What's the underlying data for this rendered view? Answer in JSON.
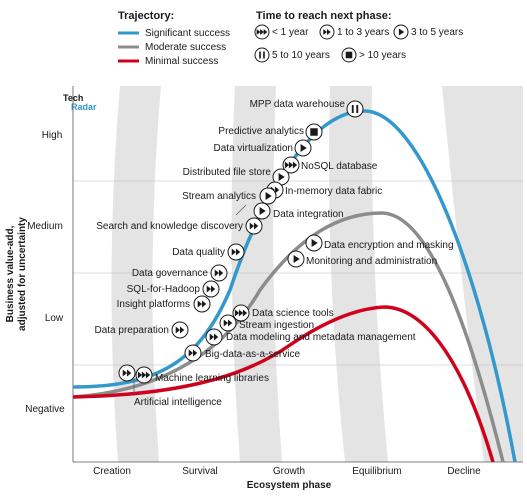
{
  "legend": {
    "trajectory_title": "Trajectory:",
    "trajectory": [
      {
        "label": "Significant success",
        "color": "#3399cc"
      },
      {
        "label": "Moderate success",
        "color": "#8c8c8c"
      },
      {
        "label": "Minimal success",
        "color": "#d0021b"
      }
    ],
    "time_title": "Time to reach next phase:",
    "time": [
      {
        "icon": "triple-arrow-icon",
        "label": "< 1 year"
      },
      {
        "icon": "double-arrow-icon",
        "label": "1 to 3 years"
      },
      {
        "icon": "play-icon",
        "label": "3 to 5 years"
      },
      {
        "icon": "pause-icon",
        "label": "5 to 10 years"
      },
      {
        "icon": "square-icon",
        "label": "> 10 years"
      }
    ]
  },
  "logo": {
    "line1": "Tech",
    "line2": "Radar"
  },
  "chart_data": {
    "type": "line",
    "xlabel": "Ecosystem phase",
    "ylabel_line1": "Business value-add,",
    "ylabel_line2": "adjusted for uncertainty",
    "x_categories": [
      "Creation",
      "Survival",
      "Growth",
      "Equilibrium",
      "Decline"
    ],
    "y_categories": [
      "Negative",
      "Low",
      "Medium",
      "High"
    ],
    "series": [
      {
        "name": "Significant success",
        "color": "#3399cc"
      },
      {
        "name": "Moderate success",
        "color": "#8c8c8c"
      },
      {
        "name": "Minimal success",
        "color": "#d0021b"
      }
    ],
    "technologies": [
      {
        "label": "MPP data warehouse",
        "phase": "Equilibrium",
        "trajectory": "Significant success",
        "time": "5 to 10 years"
      },
      {
        "label": "Predictive analytics",
        "phase": "Growth",
        "trajectory": "Significant success",
        "time": "> 10 years"
      },
      {
        "label": "Data virtualization",
        "phase": "Growth",
        "trajectory": "Significant success",
        "time": "3 to 5 years"
      },
      {
        "label": "NoSQL database",
        "phase": "Growth",
        "trajectory": "Significant success",
        "time": "< 1 year"
      },
      {
        "label": "Distributed file store",
        "phase": "Growth",
        "trajectory": "Significant success",
        "time": "3 to 5 years"
      },
      {
        "label": "In-memory data fabric",
        "phase": "Growth",
        "trajectory": "Significant success",
        "time": "1 to 3 years"
      },
      {
        "label": "Stream analytics",
        "phase": "Growth",
        "trajectory": "Significant success",
        "time": "3 to 5 years"
      },
      {
        "label": "Data integration",
        "phase": "Growth",
        "trajectory": "Significant success",
        "time": "3 to 5 years"
      },
      {
        "label": "Search and knowledge discovery",
        "phase": "Survival",
        "trajectory": "Significant success",
        "time": "1 to 3 years"
      },
      {
        "label": "Data encryption and masking",
        "phase": "Growth",
        "trajectory": "Moderate success",
        "time": "3 to 5 years"
      },
      {
        "label": "Data quality",
        "phase": "Survival",
        "trajectory": "Significant success",
        "time": "1 to 3 years"
      },
      {
        "label": "Monitoring and administration",
        "phase": "Growth",
        "trajectory": "Moderate success",
        "time": "3 to 5 years"
      },
      {
        "label": "Data governance",
        "phase": "Survival",
        "trajectory": "Significant success",
        "time": "1 to 3 years"
      },
      {
        "label": "SQL-for-Hadoop",
        "phase": "Survival",
        "trajectory": "Significant success",
        "time": "1 to 3 years"
      },
      {
        "label": "Insight platforms",
        "phase": "Survival",
        "trajectory": "Significant success",
        "time": "1 to 3 years"
      },
      {
        "label": "Data science tools",
        "phase": "Survival",
        "trajectory": "Moderate success",
        "time": "< 1 year"
      },
      {
        "label": "Stream ingestion",
        "phase": "Survival",
        "trajectory": "Moderate success",
        "time": "1 to 3 years"
      },
      {
        "label": "Data preparation",
        "phase": "Survival",
        "trajectory": "Significant success",
        "time": "1 to 3 years"
      },
      {
        "label": "Data modeling and metadata management",
        "phase": "Survival",
        "trajectory": "Moderate success",
        "time": "1 to 3 years"
      },
      {
        "label": "Big-data-as-a-service",
        "phase": "Survival",
        "trajectory": "Moderate success",
        "time": "1 to 3 years"
      },
      {
        "label": "Machine learning libraries",
        "phase": "Creation",
        "trajectory": "Significant success",
        "time": "< 1 year"
      },
      {
        "label": "Artificial intelligence",
        "phase": "Creation",
        "trajectory": "Significant success",
        "time": "1 to 3 years"
      }
    ]
  }
}
